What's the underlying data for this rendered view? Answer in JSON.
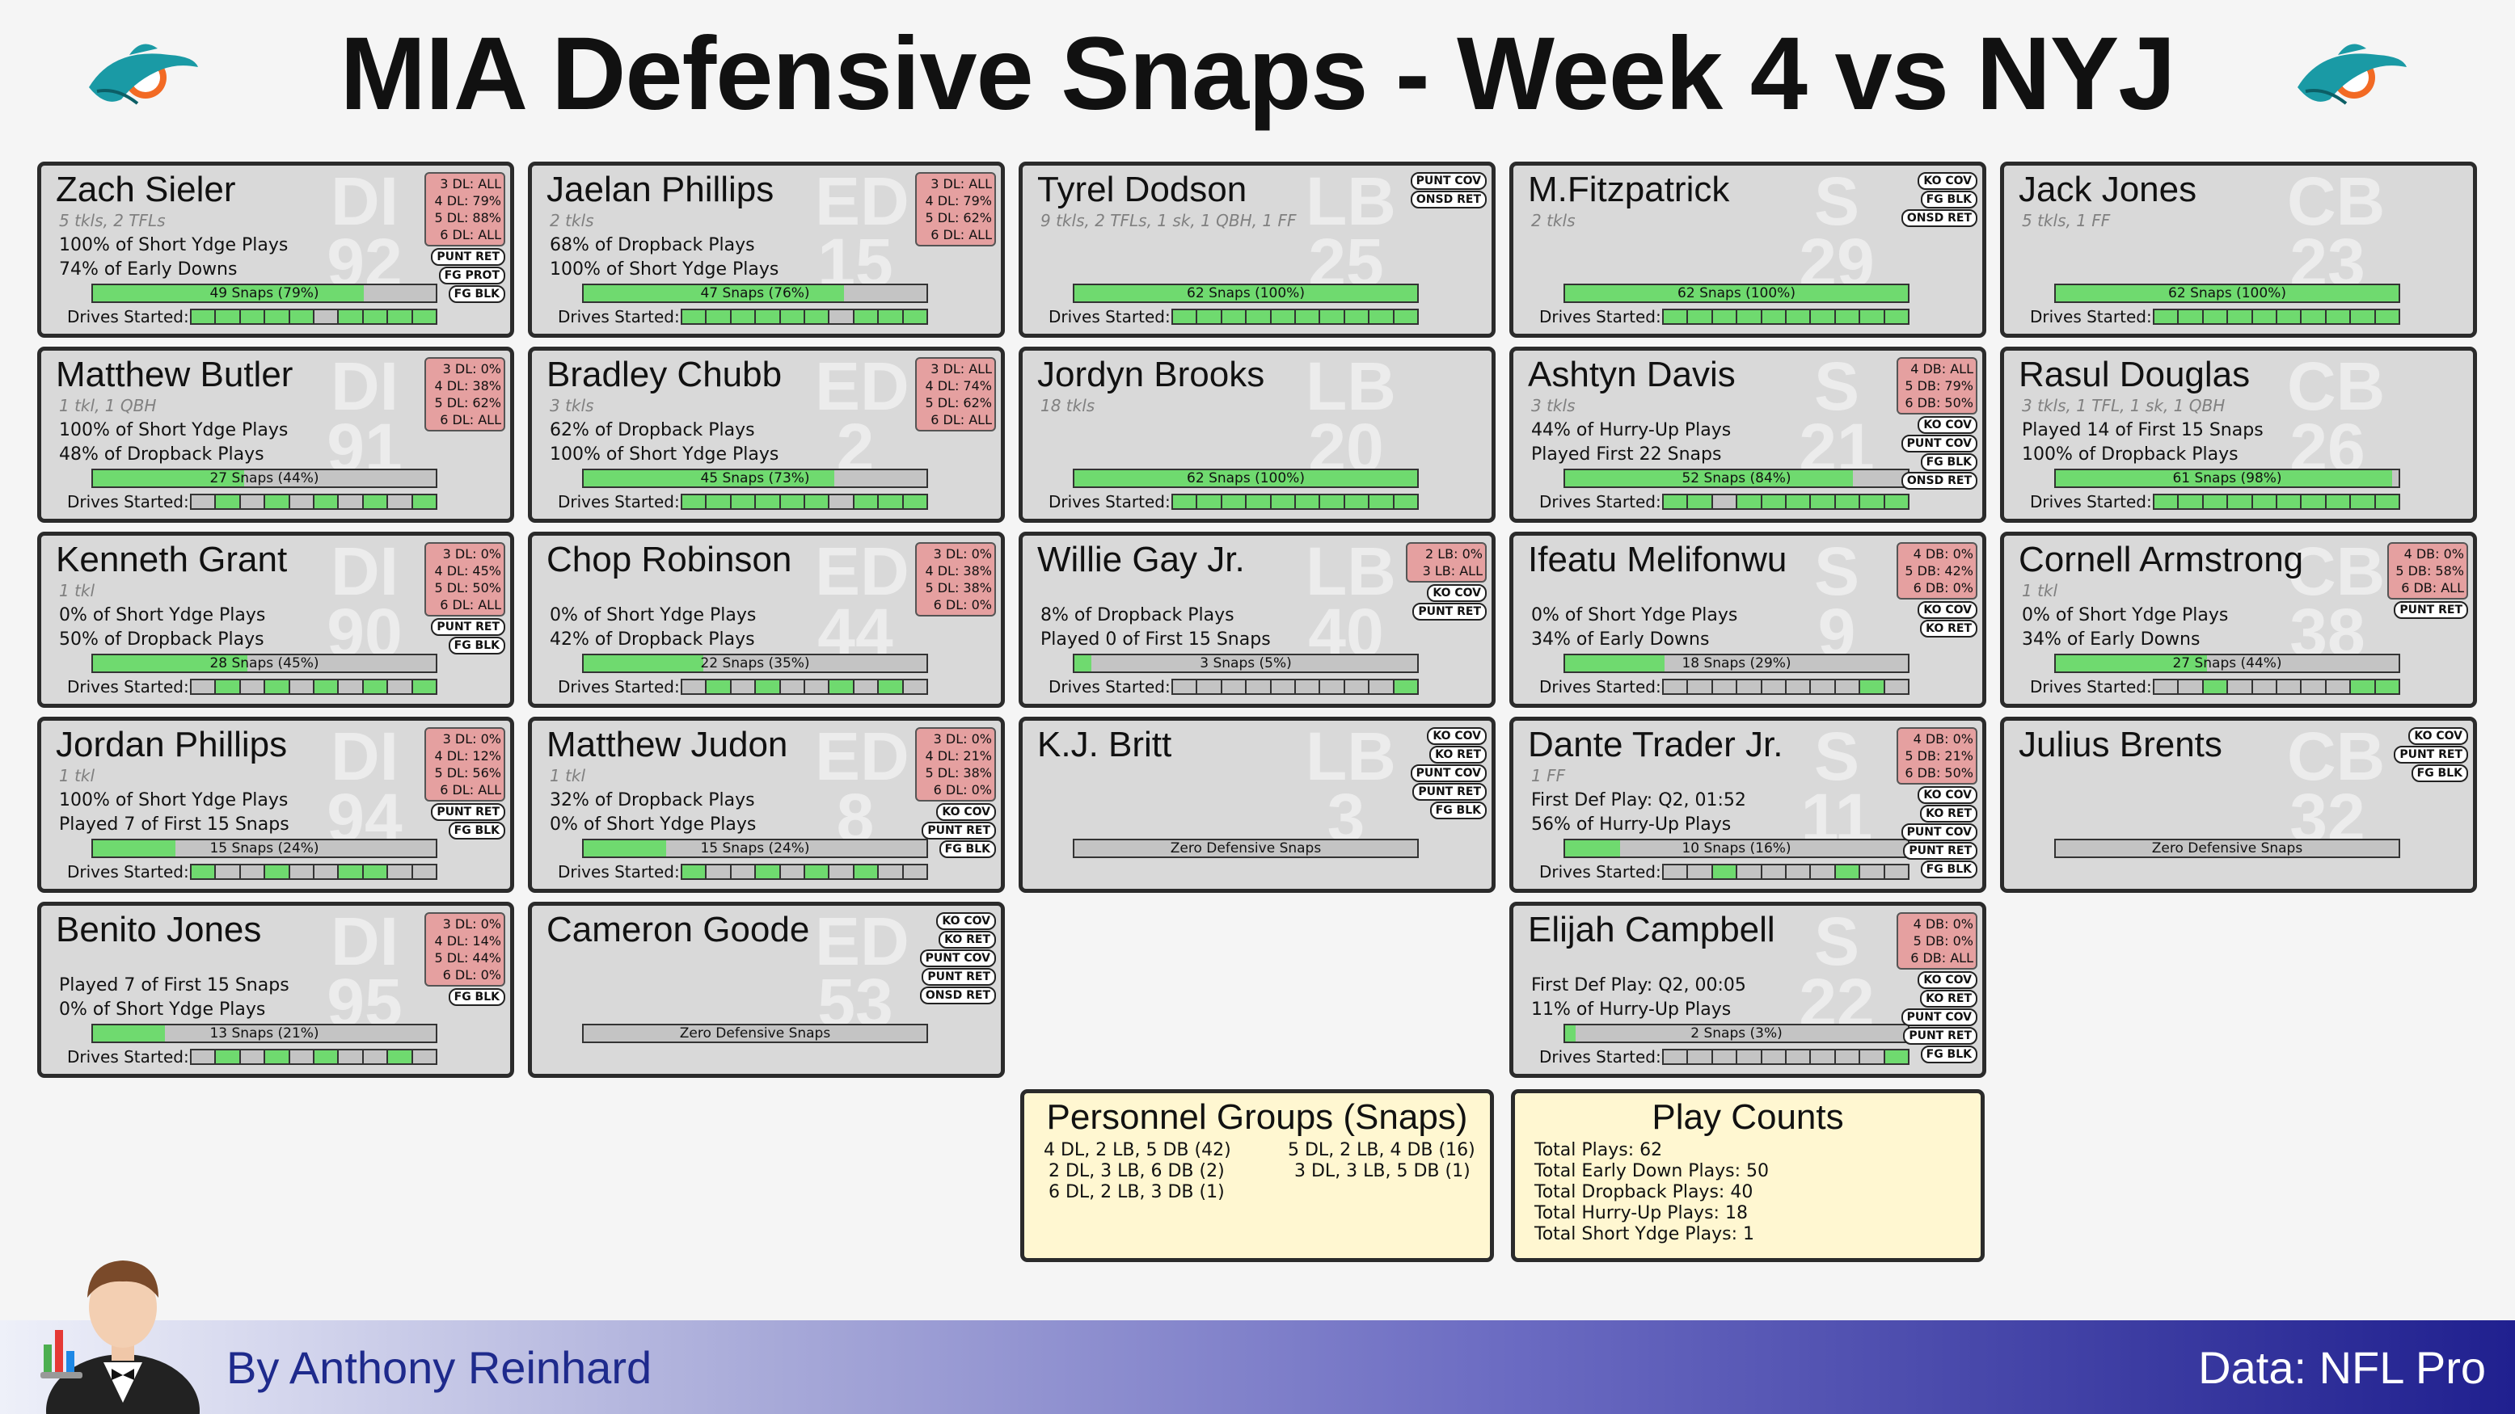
{
  "title": "MIA Defensive Snaps - Week 4 vs NYJ",
  "drives_label": "Drives Started:",
  "zero_label": "Zero Defensive Snaps",
  "colors": {
    "snap_fill": "#6fda6f",
    "pct_box": "#e5a0a0",
    "card": "#d9d9d9",
    "summary": "#fff7d1",
    "accent": "#20208f"
  },
  "players": [
    {
      "name": "Zach Sieler",
      "pos": "DI",
      "num": "92",
      "statline": "5 tkls, 2 TFLs",
      "line1": "100% of Short Ydge Plays",
      "line2": "74% of Early Downs",
      "snaps": "49 Snaps (79%)",
      "snap_pct": 79,
      "drives": [
        1,
        1,
        1,
        1,
        1,
        0,
        1,
        1,
        1,
        1
      ],
      "pct": [
        "3 DL: ALL",
        "4 DL: 79%",
        "5 DL: 88%",
        "6 DL: ALL"
      ],
      "tags": [
        "PUNT RET",
        "FG PROT",
        "FG BLK"
      ]
    },
    {
      "name": "Jaelan Phillips",
      "pos": "ED",
      "num": "15",
      "statline": "2 tkls",
      "line1": "68% of Dropback Plays",
      "line2": "100% of Short Ydge Plays",
      "snaps": "47 Snaps (76%)",
      "snap_pct": 76,
      "drives": [
        1,
        1,
        1,
        1,
        1,
        1,
        0,
        1,
        1,
        1
      ],
      "pct": [
        "3 DL: ALL",
        "4 DL: 79%",
        "5 DL: 62%",
        "6 DL: ALL"
      ],
      "tags": []
    },
    {
      "name": "Tyrel Dodson",
      "pos": "LB",
      "num": "25",
      "statline": "9 tkls, 2 TFLs, 1 sk, 1 QBH, 1 FF",
      "line1": "",
      "line2": "",
      "snaps": "62 Snaps (100%)",
      "snap_pct": 100,
      "drives": [
        1,
        1,
        1,
        1,
        1,
        1,
        1,
        1,
        1,
        1
      ],
      "pct": [],
      "tags": [
        "PUNT COV",
        "ONSD RET"
      ]
    },
    {
      "name": "M.Fitzpatrick",
      "pos": "S",
      "num": "29",
      "statline": "2 tkls",
      "line1": "",
      "line2": "",
      "snaps": "62 Snaps (100%)",
      "snap_pct": 100,
      "drives": [
        1,
        1,
        1,
        1,
        1,
        1,
        1,
        1,
        1,
        1
      ],
      "pct": [],
      "tags": [
        "KO COV",
        "FG BLK",
        "ONSD RET"
      ]
    },
    {
      "name": "Jack Jones",
      "pos": "CB",
      "num": "23",
      "statline": "5 tkls, 1 FF",
      "line1": "",
      "line2": "",
      "snaps": "62 Snaps (100%)",
      "snap_pct": 100,
      "drives": [
        1,
        1,
        1,
        1,
        1,
        1,
        1,
        1,
        1,
        1
      ],
      "pct": [],
      "tags": []
    },
    {
      "name": "Matthew Butler",
      "pos": "DI",
      "num": "91",
      "statline": "1 tkl, 1 QBH",
      "line1": "100% of Short Ydge Plays",
      "line2": "48% of Dropback Plays",
      "snaps": "27 Snaps (44%)",
      "snap_pct": 44,
      "drives": [
        0,
        1,
        0,
        1,
        0,
        1,
        0,
        1,
        0,
        1
      ],
      "pct": [
        "3 DL: 0%",
        "4 DL: 38%",
        "5 DL: 62%",
        "6 DL: ALL"
      ],
      "tags": []
    },
    {
      "name": "Bradley Chubb",
      "pos": "ED",
      "num": "2",
      "statline": "3 tkls",
      "line1": "62% of Dropback Plays",
      "line2": "100% of Short Ydge Plays",
      "snaps": "45 Snaps (73%)",
      "snap_pct": 73,
      "drives": [
        1,
        1,
        1,
        1,
        1,
        1,
        0,
        1,
        1,
        1
      ],
      "pct": [
        "3 DL: ALL",
        "4 DL: 74%",
        "5 DL: 62%",
        "6 DL: ALL"
      ],
      "tags": []
    },
    {
      "name": "Jordyn Brooks",
      "pos": "LB",
      "num": "20",
      "statline": "18 tkls",
      "line1": "",
      "line2": "",
      "snaps": "62 Snaps (100%)",
      "snap_pct": 100,
      "drives": [
        1,
        1,
        1,
        1,
        1,
        1,
        1,
        1,
        1,
        1
      ],
      "pct": [],
      "tags": []
    },
    {
      "name": "Ashtyn Davis",
      "pos": "S",
      "num": "21",
      "statline": "3 tkls",
      "line1": "44% of Hurry-Up Plays",
      "line2": "Played First 22 Snaps",
      "snaps": "52 Snaps (84%)",
      "snap_pct": 84,
      "drives": [
        1,
        1,
        0,
        1,
        1,
        1,
        1,
        1,
        1,
        1
      ],
      "pct": [
        "4 DB: ALL",
        "5 DB: 79%",
        "6 DB: 50%"
      ],
      "tags": [
        "KO COV",
        "PUNT COV",
        "FG BLK",
        "ONSD RET"
      ]
    },
    {
      "name": "Rasul Douglas",
      "pos": "CB",
      "num": "26",
      "statline": "3 tkls, 1 TFL, 1 sk, 1 QBH",
      "line1": "Played 14 of First 15 Snaps",
      "line2": "100% of Dropback Plays",
      "snaps": "61 Snaps (98%)",
      "snap_pct": 98,
      "drives": [
        1,
        1,
        1,
        1,
        1,
        1,
        1,
        1,
        1,
        1
      ],
      "pct": [],
      "tags": []
    },
    {
      "name": "Kenneth Grant",
      "pos": "DI",
      "num": "90",
      "statline": "1 tkl",
      "line1": "0% of Short Ydge Plays",
      "line2": "50% of Dropback Plays",
      "snaps": "28 Snaps (45%)",
      "snap_pct": 45,
      "drives": [
        0,
        1,
        0,
        1,
        0,
        1,
        0,
        1,
        0,
        1
      ],
      "pct": [
        "3 DL: 0%",
        "4 DL: 45%",
        "5 DL: 50%",
        "6 DL: ALL"
      ],
      "tags": [
        "PUNT RET",
        "FG BLK"
      ]
    },
    {
      "name": "Chop Robinson",
      "pos": "ED",
      "num": "44",
      "statline": "",
      "line1": "0% of Short Ydge Plays",
      "line2": "42% of Dropback Plays",
      "snaps": "22 Snaps (35%)",
      "snap_pct": 35,
      "drives": [
        0,
        1,
        0,
        1,
        0,
        0,
        1,
        0,
        1,
        0
      ],
      "pct": [
        "3 DL: 0%",
        "4 DL: 38%",
        "5 DL: 38%",
        "6 DL: 0%"
      ],
      "tags": []
    },
    {
      "name": "Willie Gay Jr.",
      "pos": "LB",
      "num": "40",
      "statline": "",
      "line1": "8% of Dropback Plays",
      "line2": "Played 0 of First 15 Snaps",
      "snaps": "3 Snaps (5%)",
      "snap_pct": 5,
      "drives": [
        0,
        0,
        0,
        0,
        0,
        0,
        0,
        0,
        0,
        1
      ],
      "pct": [
        "2 LB: 0%",
        "3 LB: ALL"
      ],
      "tags": [
        "KO COV",
        "PUNT RET"
      ]
    },
    {
      "name": "Ifeatu Melifonwu",
      "pos": "S",
      "num": "9",
      "statline": "",
      "line1": "0% of Short Ydge Plays",
      "line2": "34% of Early Downs",
      "snaps": "18 Snaps (29%)",
      "snap_pct": 29,
      "drives": [
        0,
        0,
        0,
        0,
        0,
        0,
        0,
        0,
        1,
        0
      ],
      "pct": [
        "4 DB: 0%",
        "5 DB: 42%",
        "6 DB: 0%"
      ],
      "tags": [
        "KO COV",
        "KO RET"
      ]
    },
    {
      "name": "Cornell Armstrong",
      "pos": "CB",
      "num": "38",
      "statline": "1 tkl",
      "line1": "0% of Short Ydge Plays",
      "line2": "34% of Early Downs",
      "snaps": "27 Snaps (44%)",
      "snap_pct": 44,
      "drives": [
        0,
        0,
        1,
        0,
        0,
        0,
        0,
        0,
        1,
        1
      ],
      "pct": [
        "4 DB: 0%",
        "5 DB: 58%",
        "6 DB: ALL"
      ],
      "tags": [
        "PUNT RET"
      ]
    },
    {
      "name": "Jordan Phillips",
      "pos": "DI",
      "num": "94",
      "statline": "1 tkl",
      "line1": "100% of Short Ydge Plays",
      "line2": "Played 7 of First 15 Snaps",
      "snaps": "15 Snaps (24%)",
      "snap_pct": 24,
      "drives": [
        1,
        0,
        0,
        1,
        0,
        0,
        1,
        1,
        0,
        0
      ],
      "pct": [
        "3 DL: 0%",
        "4 DL: 12%",
        "5 DL: 56%",
        "6 DL: ALL"
      ],
      "tags": [
        "PUNT RET",
        "FG BLK"
      ]
    },
    {
      "name": "Matthew Judon",
      "pos": "ED",
      "num": "8",
      "statline": "1 tkl",
      "line1": "32% of Dropback Plays",
      "line2": "0% of Short Ydge Plays",
      "snaps": "15 Snaps (24%)",
      "snap_pct": 24,
      "drives": [
        1,
        0,
        0,
        1,
        0,
        1,
        0,
        1,
        0,
        0
      ],
      "pct": [
        "3 DL: 0%",
        "4 DL: 21%",
        "5 DL: 38%",
        "6 DL: 0%"
      ],
      "tags": [
        "KO COV",
        "PUNT RET",
        "FG BLK"
      ]
    },
    {
      "name": "K.J. Britt",
      "pos": "LB",
      "num": "3",
      "statline": "",
      "line1": "",
      "line2": "",
      "snaps": "",
      "snap_pct": 0,
      "drives": [],
      "pct": [],
      "tags": [
        "KO COV",
        "KO RET",
        "PUNT COV",
        "PUNT RET",
        "FG BLK"
      ],
      "zero": true
    },
    {
      "name": "Dante Trader Jr.",
      "pos": "S",
      "num": "11",
      "statline": "1 FF",
      "line1": "First Def Play: Q2, 01:52",
      "line2": "56% of Hurry-Up Plays",
      "snaps": "10 Snaps (16%)",
      "snap_pct": 16,
      "drives": [
        0,
        0,
        1,
        0,
        0,
        0,
        0,
        1,
        0,
        0
      ],
      "pct": [
        "4 DB: 0%",
        "5 DB: 21%",
        "6 DB: 50%"
      ],
      "tags": [
        "KO COV",
        "KO RET",
        "PUNT COV",
        "PUNT RET",
        "FG BLK"
      ]
    },
    {
      "name": "Julius Brents",
      "pos": "CB",
      "num": "32",
      "statline": "",
      "line1": "",
      "line2": "",
      "snaps": "",
      "snap_pct": 0,
      "drives": [],
      "pct": [],
      "tags": [
        "KO COV",
        "PUNT RET",
        "FG BLK"
      ],
      "zero": true
    },
    {
      "name": "Benito Jones",
      "pos": "DI",
      "num": "95",
      "statline": "",
      "line1": "Played 7 of First 15 Snaps",
      "line2": "0% of Short Ydge Plays",
      "snaps": "13 Snaps (21%)",
      "snap_pct": 21,
      "drives": [
        0,
        1,
        0,
        1,
        0,
        1,
        0,
        0,
        1,
        0
      ],
      "pct": [
        "3 DL: 0%",
        "4 DL: 14%",
        "5 DL: 44%",
        "6 DL: 0%"
      ],
      "tags": [
        "FG BLK"
      ]
    },
    {
      "name": "Cameron Goode",
      "pos": "ED",
      "num": "53",
      "statline": "",
      "line1": "",
      "line2": "",
      "snaps": "",
      "snap_pct": 0,
      "drives": [],
      "pct": [],
      "tags": [
        "KO COV",
        "KO RET",
        "PUNT COV",
        "PUNT RET",
        "ONSD RET"
      ],
      "zero": true
    },
    null,
    {
      "name": "Elijah Campbell",
      "pos": "S",
      "num": "22",
      "statline": "",
      "line1": "First Def Play: Q2, 00:05",
      "line2": "11% of Hurry-Up Plays",
      "snaps": "2 Snaps (3%)",
      "snap_pct": 3,
      "drives": [
        0,
        0,
        0,
        0,
        0,
        0,
        0,
        0,
        0,
        1
      ],
      "pct": [
        "4 DB: 0%",
        "5 DB: 0%",
        "6 DB: ALL"
      ],
      "tags": [
        "KO COV",
        "KO RET",
        "PUNT COV",
        "PUNT RET",
        "FG BLK"
      ]
    },
    null
  ],
  "personnel": {
    "title": "Personnel Groups (Snaps)",
    "left": [
      "4 DL, 2 LB, 5 DB (42)",
      "2 DL, 3 LB, 6 DB (2)",
      "6 DL, 2 LB, 3 DB (1)"
    ],
    "right": [
      "5 DL, 2 LB, 4 DB (16)",
      "3 DL, 3 LB, 5 DB (1)"
    ]
  },
  "play_counts": {
    "title": "Play Counts",
    "lines": [
      "Total Plays: 62",
      "Total Early Down Plays: 50",
      "Total Dropback Plays: 40",
      "Total Hurry-Up Plays: 18",
      "Total Short Ydge Plays: 1"
    ]
  },
  "footer": {
    "byline": "By Anthony Reinhard",
    "source": "Data: NFL Pro"
  }
}
